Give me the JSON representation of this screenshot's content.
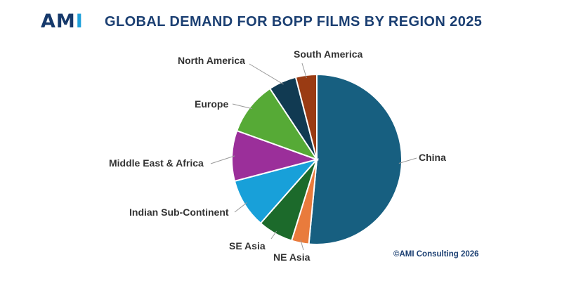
{
  "logo": {
    "part1": "AM",
    "part2": "I"
  },
  "title": "GLOBAL DEMAND FOR BOPP FILMS BY REGION 2025",
  "copyright": "©AMI Consulting 2026",
  "colors": {
    "title": "#1b3f72",
    "logo_dark": "#16396b",
    "logo_light": "#1fa0db"
  },
  "chart_data": {
    "type": "pie",
    "title": "GLOBAL DEMAND FOR BOPP FILMS BY REGION 2025",
    "legend": "none (slices labelled directly)",
    "slices": [
      {
        "label": "China",
        "value": 51.5,
        "color": "#175f80"
      },
      {
        "label": "NE Asia",
        "value": 3.3,
        "color": "#e97b3c"
      },
      {
        "label": "SE Asia",
        "value": 6.7,
        "color": "#1c6a2b"
      },
      {
        "label": "Indian Sub-Continent",
        "value": 9.4,
        "color": "#18a0d9"
      },
      {
        "label": "Middle East & Africa",
        "value": 9.6,
        "color": "#9b2f9a"
      },
      {
        "label": "Europe",
        "value": 10.2,
        "color": "#56aa36"
      },
      {
        "label": "North America",
        "value": 5.3,
        "color": "#113a52"
      },
      {
        "label": "South America",
        "value": 4.0,
        "color": "#9a3b13"
      }
    ]
  }
}
